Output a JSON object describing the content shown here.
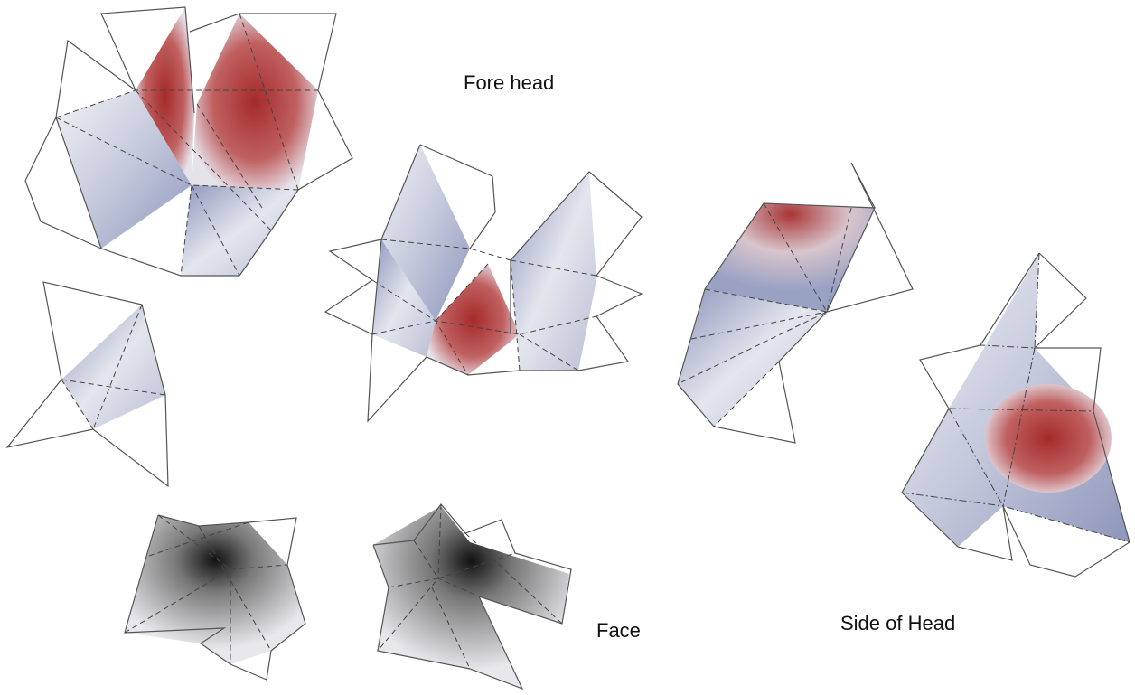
{
  "labels": {
    "forehead": "Fore head",
    "face": "Face",
    "side_of_head": "Side of Head"
  }
}
